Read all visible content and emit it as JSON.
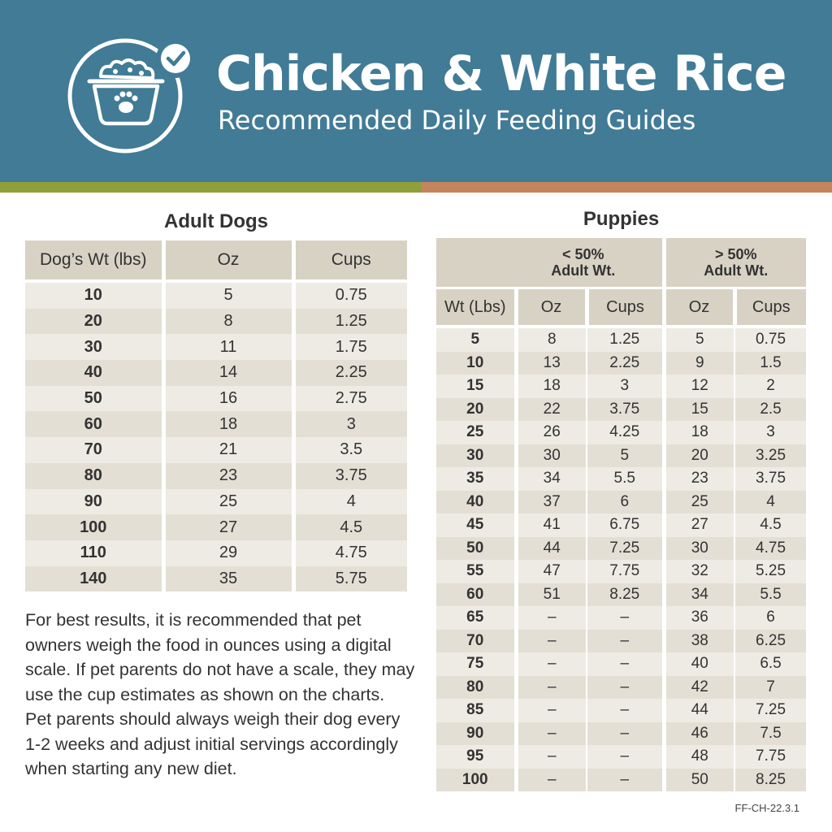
{
  "header": {
    "title": "Chicken & White Rice",
    "subtitle": "Recommended Daily Feeding Guides"
  },
  "adult": {
    "title": "Adult Dogs",
    "columns": [
      "Dog’s Wt (lbs)",
      "Oz",
      "Cups"
    ],
    "rows": [
      [
        "10",
        "5",
        "0.75"
      ],
      [
        "20",
        "8",
        "1.25"
      ],
      [
        "30",
        "11",
        "1.75"
      ],
      [
        "40",
        "14",
        "2.25"
      ],
      [
        "50",
        "16",
        "2.75"
      ],
      [
        "60",
        "18",
        "3"
      ],
      [
        "70",
        "21",
        "3.5"
      ],
      [
        "80",
        "23",
        "3.75"
      ],
      [
        "90",
        "25",
        "4"
      ],
      [
        "100",
        "27",
        "4.5"
      ],
      [
        "110",
        "29",
        "4.75"
      ],
      [
        "140",
        "35",
        "5.75"
      ]
    ]
  },
  "puppies": {
    "title": "Puppies",
    "group_under_line1": "< 50%",
    "group_under_line2": "Adult Wt.",
    "group_over_line1": "> 50%",
    "group_over_line2": "Adult Wt.",
    "columns": [
      "Wt (Lbs)",
      "Oz",
      "Cups",
      "Oz",
      "Cups"
    ],
    "rows": [
      [
        "5",
        "8",
        "1.25",
        "5",
        "0.75"
      ],
      [
        "10",
        "13",
        "2.25",
        "9",
        "1.5"
      ],
      [
        "15",
        "18",
        "3",
        "12",
        "2"
      ],
      [
        "20",
        "22",
        "3.75",
        "15",
        "2.5"
      ],
      [
        "25",
        "26",
        "4.25",
        "18",
        "3"
      ],
      [
        "30",
        "30",
        "5",
        "20",
        "3.25"
      ],
      [
        "35",
        "34",
        "5.5",
        "23",
        "3.75"
      ],
      [
        "40",
        "37",
        "6",
        "25",
        "4"
      ],
      [
        "45",
        "41",
        "6.75",
        "27",
        "4.5"
      ],
      [
        "50",
        "44",
        "7.25",
        "30",
        "4.75"
      ],
      [
        "55",
        "47",
        "7.75",
        "32",
        "5.25"
      ],
      [
        "60",
        "51",
        "8.25",
        "34",
        "5.5"
      ],
      [
        "65",
        "–",
        "–",
        "36",
        "6"
      ],
      [
        "70",
        "–",
        "–",
        "38",
        "6.25"
      ],
      [
        "75",
        "–",
        "–",
        "40",
        "6.5"
      ],
      [
        "80",
        "–",
        "–",
        "42",
        "7"
      ],
      [
        "85",
        "–",
        "–",
        "44",
        "7.25"
      ],
      [
        "90",
        "–",
        "–",
        "46",
        "7.5"
      ],
      [
        "95",
        "–",
        "–",
        "48",
        "7.75"
      ],
      [
        "100",
        "–",
        "–",
        "50",
        "8.25"
      ]
    ]
  },
  "note": "For best results, it is recommended that pet owners weigh the food in ounces using a digital scale. If pet parents do not have a scale, they may use the cup estimates as shown on the charts. Pet parents should always weigh their dog every 1-2 weeks and adjust initial servings accordingly when starting any new diet.",
  "code": "FF-CH-22.3.1",
  "colors": {
    "header_bg": "#417b96",
    "stripe_green": "#8e9f3c",
    "stripe_orange": "#c4855c",
    "table_header": "#d7d2c3",
    "row_light": "#eeebe4",
    "row_dark": "#e3dfd5"
  }
}
